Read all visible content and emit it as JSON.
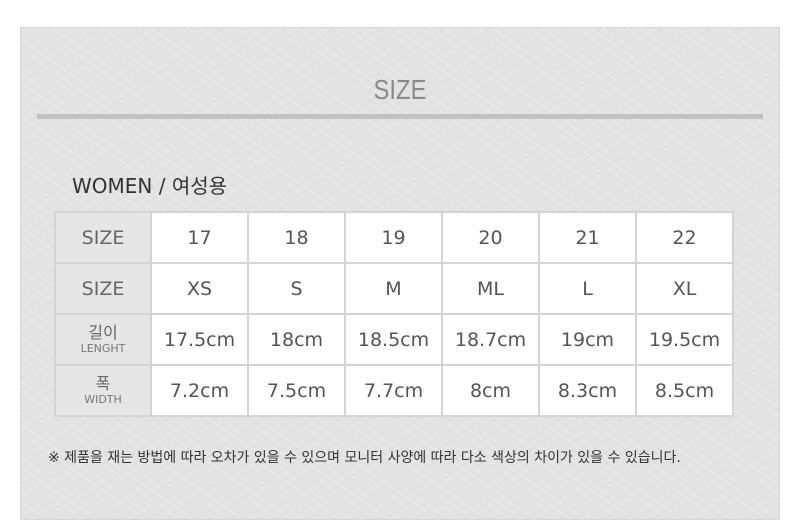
{
  "title": "SIZE",
  "subtitle": "WOMEN / 여성용",
  "table": {
    "rows": [
      {
        "label": "SIZE",
        "values": [
          "17",
          "18",
          "19",
          "20",
          "21",
          "22"
        ]
      },
      {
        "label": "SIZE",
        "values": [
          "XS",
          "S",
          "M",
          "ML",
          "L",
          "XL"
        ]
      },
      {
        "label_ko": "길이",
        "label_en": "LENGHT",
        "values": [
          "17.5cm",
          "18cm",
          "18.5cm",
          "18.7cm",
          "19cm",
          "19.5cm"
        ]
      },
      {
        "label_ko": "폭",
        "label_en": "WIDTH",
        "values": [
          "7.2cm",
          "7.5cm",
          "7.7cm",
          "8cm",
          "8.3cm",
          "8.5cm"
        ]
      }
    ]
  },
  "note": "※ 제품을 재는 방법에 따라 오차가 있을 수 있으며 모니터 사양에 따라 다소 색상의 차이가 있을 수 있습니다."
}
